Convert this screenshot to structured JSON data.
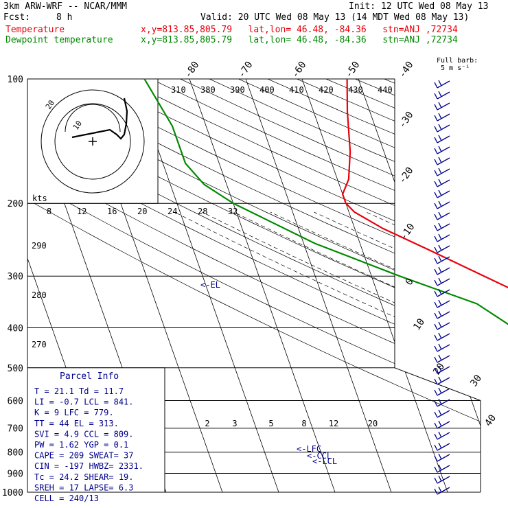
{
  "header": {
    "model": "3km ARW-WRF -- NCAR/MMM",
    "init": "Init: 12 UTC Wed 08 May 13",
    "fcst_label": "Fcst:",
    "fcst_value": "8 h",
    "valid": "Valid: 20 UTC Wed 08 May 13 (14 MDT Wed 08 May 13)",
    "temp_label": "Temperature",
    "temp_info": "x,y=813.85,805.79   lat,lon= 46.48, -84.36   stn=ANJ ,72734",
    "dew_label": "Dewpoint temperature",
    "dew_info": "x,y=813.85,805.79   lat,lon= 46.48, -84.36   stn=ANJ ,72734",
    "barb_legend_1": "Full barb:",
    "barb_legend_2": "5 m s⁻¹"
  },
  "colors": {
    "temperature": "#e8000b",
    "dewpoint": "#008a00",
    "text_blue": "#00008b",
    "grid": "#000000"
  },
  "parcel": {
    "title": "Parcel Info",
    "rows": [
      "T   =   21.1  Td =  11.7",
      "LI  =   -0.7  LCL =  841.",
      "K   =      9  LFC =  779.",
      "TT  =     44  EL  =  313.",
      "SVI =    4.9  CCL =  809.",
      "PW  =   1.62  YGP =   0.1",
      "CAPE =   209  SWEAT=   37",
      "CIN  =  -197  HWBZ= 2331.",
      "Tc  =   24.2  SHEAR=  19.",
      "SREH =    17  LAPSE=  6.3",
      "CELL = 240/13"
    ]
  },
  "hodograph": {
    "kts_label": "kts",
    "ring_labels": [
      "20",
      "10"
    ],
    "speed_ticks": [
      "8",
      "12",
      "16",
      "20",
      "24",
      "28",
      "32"
    ]
  },
  "chart_data": {
    "type": "line",
    "title": "",
    "xlabel": "",
    "ylabel": "",
    "pressure_levels": [
      100,
      200,
      300,
      400,
      500,
      600,
      700,
      800,
      900,
      1000
    ],
    "isotherm_labels_top": [
      "-80",
      "-70",
      "-60",
      "-50",
      "-40"
    ],
    "isotherm_labels_right": [
      "-30",
      "-20",
      "-10",
      "0",
      "10",
      "20",
      "30",
      "40"
    ],
    "theta_labels": [
      "310",
      "380",
      "390",
      "400",
      "410",
      "420",
      "430",
      "440"
    ],
    "mixing_ratio_labels": [
      "2",
      "3",
      "5",
      "8",
      "12",
      "20"
    ],
    "height_labels": [
      "290",
      "280",
      "270"
    ],
    "annotations": [
      "<-EL",
      "<-LFC",
      "<-CCL",
      "<-LCL"
    ],
    "series": [
      {
        "name": "Temperature",
        "points": [
          [
            100,
            -52
          ],
          [
            120,
            -54
          ],
          [
            150,
            -56
          ],
          [
            175,
            -58
          ],
          [
            190,
            -60
          ],
          [
            200,
            -60
          ],
          [
            210,
            -59
          ],
          [
            230,
            -55
          ],
          [
            260,
            -48
          ],
          [
            300,
            -40
          ],
          [
            340,
            -33
          ],
          [
            400,
            -23
          ],
          [
            450,
            -15
          ],
          [
            500,
            -9
          ],
          [
            600,
            -2
          ],
          [
            700,
            4
          ],
          [
            780,
            10
          ],
          [
            800,
            11
          ],
          [
            850,
            14
          ],
          [
            900,
            17
          ],
          [
            950,
            20
          ],
          [
            1000,
            21.1
          ]
        ]
      },
      {
        "name": "Dewpoint temperature",
        "points": [
          [
            100,
            -88
          ],
          [
            130,
            -86
          ],
          [
            160,
            -86
          ],
          [
            180,
            -84
          ],
          [
            200,
            -80
          ],
          [
            250,
            -68
          ],
          [
            300,
            -55
          ],
          [
            350,
            -43
          ],
          [
            400,
            -38
          ],
          [
            450,
            -32
          ],
          [
            500,
            -24
          ],
          [
            560,
            -22
          ],
          [
            600,
            -22
          ],
          [
            650,
            -18
          ],
          [
            700,
            -20
          ],
          [
            760,
            -8
          ],
          [
            800,
            0
          ],
          [
            850,
            2
          ],
          [
            880,
            10
          ],
          [
            900,
            11.7
          ],
          [
            950,
            11.5
          ],
          [
            1000,
            11.7
          ]
        ]
      }
    ]
  }
}
